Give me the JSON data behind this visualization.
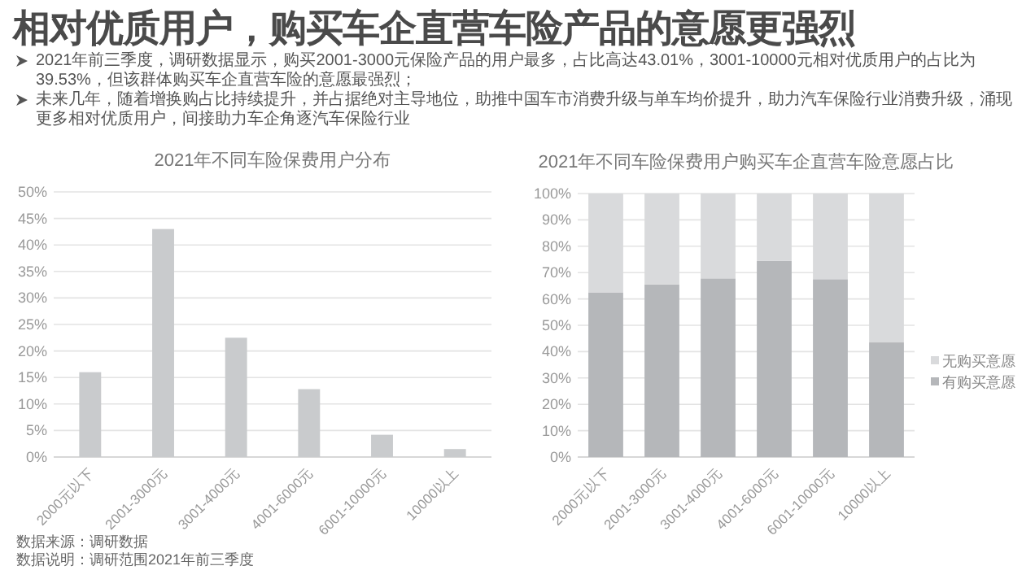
{
  "chart_data": [
    {
      "type": "bar",
      "title": "2021年不同车险保费用户分布",
      "categories": [
        "2000元以下",
        "2001-3000元",
        "3001-4000元",
        "4001-6000元",
        "6001-10000元",
        "10000以上"
      ],
      "values": [
        16,
        43,
        22.5,
        12.8,
        4.2,
        1.5
      ],
      "color": "#c9cbcd",
      "ylim": [
        0,
        50
      ],
      "yticks": [
        {
          "value": 0,
          "label": "0%"
        },
        {
          "value": 5,
          "label": "5%"
        },
        {
          "value": 10,
          "label": "10%"
        },
        {
          "value": 15,
          "label": "15%"
        },
        {
          "value": 20,
          "label": "20%"
        },
        {
          "value": 25,
          "label": "25%"
        },
        {
          "value": 30,
          "label": "30%"
        },
        {
          "value": 35,
          "label": "35%"
        },
        {
          "value": 40,
          "label": "40%"
        },
        {
          "value": 45,
          "label": "45%"
        },
        {
          "value": 50,
          "label": "50%"
        }
      ],
      "grid": "y",
      "legend": false,
      "annotations": [
        "相对优质用户，购买车企直营车险产品的意愿更强烈",
        "2021年前三季度，调研数据显示，购买2001-3000元保险产品的用户最多，占比高达43.01%，3001-10000元相对优质用户的占比为39.53%，但该群体购买车企直营车险的意愿最强烈；",
        "未来几年，随着增换购占比持续提升，并占据绝对主导地位，助推中国车市消费升级与单车均价提升，助力汽车保险行业消费升级，涌现更多相对优质用户，间接助力车企角逐汽车保险行业",
        "数据来源：调研数据",
        "数据说明：调研范围2021年前三季度"
      ]
    },
    {
      "type": "bar",
      "title": "2021年不同车险保费用户购买车企直营车险意愿占比",
      "categories": [
        "2000元以下",
        "2001-3000元",
        "3001-4000元",
        "4001-6000元",
        "6001-10000元",
        "10000以上"
      ],
      "stacked": true,
      "series": [
        {
          "name": "有购买意愿",
          "color": "#b5b7ba",
          "values": [
            62.5,
            65.5,
            67.8,
            74.5,
            67.5,
            43.5
          ]
        },
        {
          "name": "无购买意愿",
          "color": "#d9dadc",
          "values": [
            37.5,
            34.5,
            32.2,
            25.5,
            32.5,
            56.5
          ]
        }
      ],
      "ylim": [
        0,
        100
      ],
      "yticks": [
        {
          "value": 0,
          "label": "0%"
        },
        {
          "value": 10,
          "label": "10%"
        },
        {
          "value": 20,
          "label": "20%"
        },
        {
          "value": 30,
          "label": "30%"
        },
        {
          "value": 40,
          "label": "40%"
        },
        {
          "value": 50,
          "label": "50%"
        },
        {
          "value": 60,
          "label": "60%"
        },
        {
          "value": 70,
          "label": "70%"
        },
        {
          "value": 80,
          "label": "80%"
        },
        {
          "value": 90,
          "label": "90%"
        },
        {
          "value": 100,
          "label": "100%"
        }
      ],
      "grid": "y",
      "legend": "right"
    }
  ]
}
